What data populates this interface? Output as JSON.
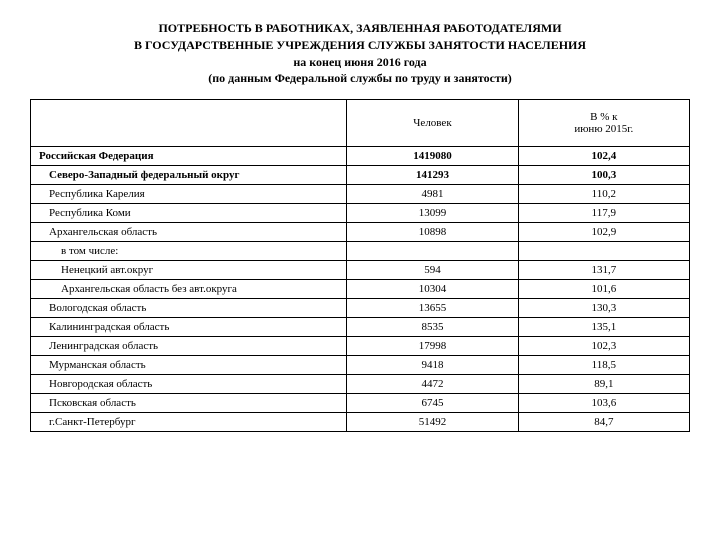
{
  "title": {
    "line1": "ПОТРЕБНОСТЬ В РАБОТНИКАХ, ЗАЯВЛЕННАЯ РАБОТОДАТЕЛЯМИ",
    "line2": "В ГОСУДАРСТВЕННЫЕ УЧРЕЖДЕНИЯ СЛУЖБЫ ЗАНЯТОСТИ НАСЕЛЕНИЯ",
    "line3": "на конец июня 2016 года",
    "line4": "(по данным Федеральной службы по труду и занятости)"
  },
  "headers": {
    "col1": "",
    "col2": "Человек",
    "col3_line1": "В % к",
    "col3_line2": "июню 2015г."
  },
  "rows": [
    {
      "label": "Российская Федерация",
      "people": "1419080",
      "pct": "102,4",
      "bold": true,
      "indent": 0
    },
    {
      "label": "Северо-Западный федеральный округ",
      "people": "141293",
      "pct": "100,3",
      "bold": true,
      "indent": 1
    },
    {
      "label": "Республика Карелия",
      "people": "4981",
      "pct": "110,2",
      "bold": false,
      "indent": 1
    },
    {
      "label": "Республика Коми",
      "people": "13099",
      "pct": "117,9",
      "bold": false,
      "indent": 1
    },
    {
      "label": "Архангельская область",
      "people": "10898",
      "pct": "102,9",
      "bold": false,
      "indent": 1
    },
    {
      "label": "в том числе:",
      "people": "",
      "pct": "",
      "bold": false,
      "indent": 2
    },
    {
      "label": "Ненецкий авт.округ",
      "people": "594",
      "pct": "131,7",
      "bold": false,
      "indent": 2
    },
    {
      "label": "Архангельская область без авт.округа",
      "people": "10304",
      "pct": "101,6",
      "bold": false,
      "indent": 2
    },
    {
      "label": "Вологодская область",
      "people": "13655",
      "pct": "130,3",
      "bold": false,
      "indent": 1
    },
    {
      "label": "Калининградская область",
      "people": "8535",
      "pct": "135,1",
      "bold": false,
      "indent": 1
    },
    {
      "label": "Ленинградская область",
      "people": "17998",
      "pct": "102,3",
      "bold": false,
      "indent": 1
    },
    {
      "label": "Мурманская область",
      "people": "9418",
      "pct": "118,5",
      "bold": false,
      "indent": 1
    },
    {
      "label": "Новгородская область",
      "people": "4472",
      "pct": "89,1",
      "bold": false,
      "indent": 1
    },
    {
      "label": "Псковская область",
      "people": "6745",
      "pct": "103,6",
      "bold": false,
      "indent": 1
    },
    {
      "label": "г.Санкт-Петербург",
      "people": "51492",
      "pct": "84,7",
      "bold": false,
      "indent": 1
    }
  ]
}
